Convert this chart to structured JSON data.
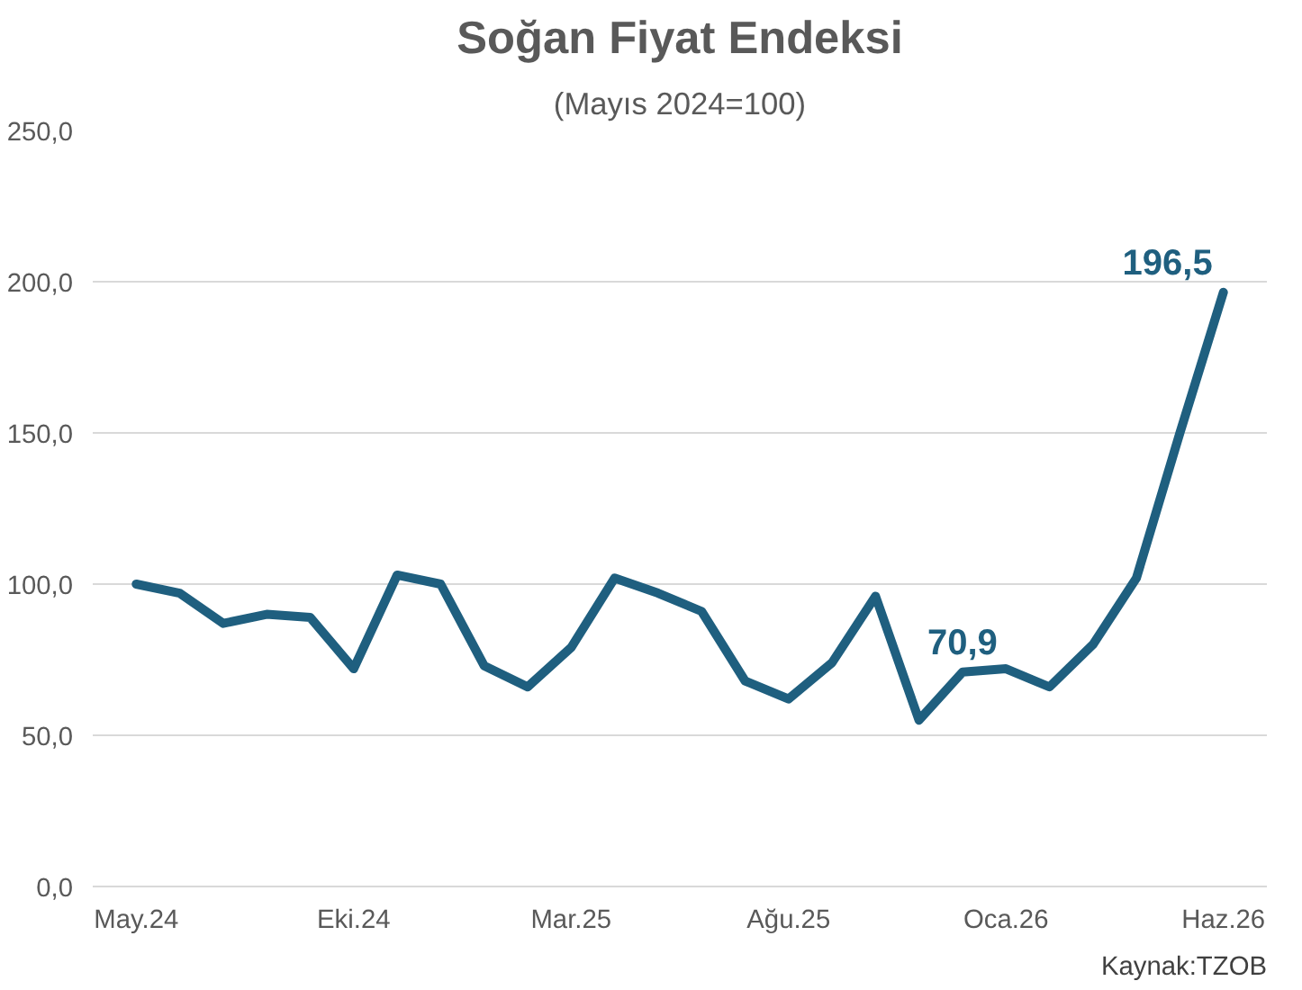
{
  "chart_data": {
    "type": "line",
    "title": "Soğan Fiyat Endeksi",
    "subtitle": "(Mayıs 2024=100)",
    "categories": [
      "May.24",
      null,
      null,
      null,
      null,
      "Eki.24",
      null,
      null,
      null,
      null,
      "Mar.25",
      null,
      null,
      null,
      null,
      "Ağu.25",
      null,
      null,
      null,
      null,
      "Oca.26",
      null,
      null,
      null,
      null,
      "Haz.26"
    ],
    "series": [
      {
        "color": "#1f5f7f",
        "values": [
          100,
          97,
          87,
          90,
          89,
          72,
          103,
          100,
          73,
          66,
          79,
          102,
          97,
          91,
          68,
          62,
          74,
          96,
          55,
          70.9,
          72,
          66,
          80,
          102,
          150,
          196.5
        ],
        "value_labels": [
          null,
          null,
          null,
          null,
          null,
          null,
          null,
          null,
          null,
          null,
          null,
          null,
          null,
          null,
          null,
          null,
          null,
          null,
          null,
          "70,9",
          null,
          null,
          null,
          null,
          null,
          "196,5"
        ]
      }
    ],
    "ylim": [
      0,
      250
    ],
    "yticks": [
      {
        "value": 0,
        "label": "0,0"
      },
      {
        "value": 50,
        "label": "50,0"
      },
      {
        "value": 100,
        "label": "100,0"
      },
      {
        "value": 150,
        "label": "150,0"
      },
      {
        "value": 200,
        "label": "200,0"
      },
      {
        "value": 250,
        "label": "250,0"
      }
    ],
    "grid": "y",
    "marker": "none",
    "line_style": "solid",
    "annotations": [
      "Kaynak:TZOB"
    ]
  }
}
